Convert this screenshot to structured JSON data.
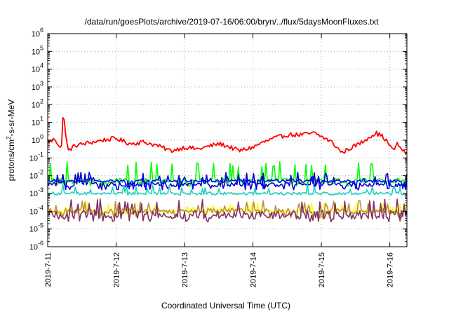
{
  "chart_data": {
    "type": "line",
    "title": "/data/run/goesPlots/archive/2019-07-16/06:00/bryn/../flux/5daysMoonFluxes.txt",
    "xlabel": "Coordinated Universal Time (UTC)",
    "ylabel": {
      "prefix": "protons/cm",
      "superscript": "2",
      "suffix": "-s-sr-MeV"
    },
    "yscale": "log",
    "ylim_exponent": [
      -6,
      6
    ],
    "y_ticks": [
      {
        "base": "10",
        "exp": "6"
      },
      {
        "base": "10",
        "exp": "5"
      },
      {
        "base": "10",
        "exp": "4"
      },
      {
        "base": "10",
        "exp": "3"
      },
      {
        "base": "10",
        "exp": "2"
      },
      {
        "base": "10",
        "exp": "1"
      },
      {
        "base": "10",
        "exp": "0"
      },
      {
        "base": "10",
        "exp": "-1"
      },
      {
        "base": "10",
        "exp": "-2"
      },
      {
        "base": "10",
        "exp": "-3"
      },
      {
        "base": "10",
        "exp": "-4"
      },
      {
        "base": "10",
        "exp": "-5"
      },
      {
        "base": "10",
        "exp": "-6"
      }
    ],
    "x_ticks": [
      "2019-7-11",
      "2019-7-12",
      "2019-7-13",
      "2019-7-14",
      "2019-7-15",
      "2019-7-16"
    ],
    "xlim": [
      "2019-07-11T00:00",
      "2019-07-16T06:00"
    ],
    "grid": true,
    "series": [
      {
        "color": "#ff0000",
        "baseline_exp": -0.1,
        "segments": [
          [
            0.0,
            0.0
          ],
          [
            0.05,
            -0.1
          ],
          [
            0.1,
            0.1
          ],
          [
            0.2,
            -0.5
          ],
          [
            0.23,
            1.8
          ],
          [
            0.27,
            0.0
          ],
          [
            0.3,
            -0.6
          ],
          [
            0.4,
            -0.3
          ],
          [
            0.6,
            -0.15
          ],
          [
            0.8,
            0.0
          ],
          [
            1.0,
            0.1
          ],
          [
            1.2,
            -0.2
          ],
          [
            1.4,
            -0.1
          ],
          [
            1.6,
            -0.3
          ],
          [
            1.8,
            -0.6
          ],
          [
            2.0,
            -0.4
          ],
          [
            2.2,
            -0.5
          ],
          [
            2.5,
            -0.2
          ],
          [
            2.6,
            -0.3
          ],
          [
            2.8,
            -0.6
          ],
          [
            3.0,
            -0.4
          ],
          [
            3.1,
            -0.2
          ],
          [
            3.3,
            0.1
          ],
          [
            3.5,
            0.3
          ],
          [
            3.7,
            0.3
          ],
          [
            3.9,
            0.4
          ],
          [
            4.0,
            0.2
          ],
          [
            4.15,
            -0.1
          ],
          [
            4.3,
            -0.7
          ],
          [
            4.4,
            -0.5
          ],
          [
            4.6,
            -0.1
          ],
          [
            4.7,
            0.2
          ],
          [
            4.8,
            0.4
          ],
          [
            4.9,
            0.2
          ],
          [
            5.0,
            -0.3
          ],
          [
            5.05,
            -0.6
          ],
          [
            5.1,
            -0.2
          ],
          [
            5.25,
            -0.8
          ]
        ],
        "noise": 0.25
      },
      {
        "color": "#00ff00",
        "baseline_exp": -2.3,
        "spike_to": -1.2,
        "dip_to": -2.6,
        "noise": 0.15
      },
      {
        "color": "#0000ff",
        "baseline_exp": -2.3,
        "spike_to": -2.0,
        "dip_to": -2.8,
        "noise": 0.08
      },
      {
        "color": "#0000cc",
        "baseline_exp": -2.5,
        "spike_to": -1.8,
        "dip_to": -2.8,
        "noise": 0.12
      },
      {
        "color": "#20d0c0",
        "baseline_exp": -3.0,
        "spike_to": -2.5,
        "dip_to": -3.1,
        "noise": 0.08
      },
      {
        "color": "#ffff00",
        "baseline_exp": -4.0,
        "spike_to": -3.5,
        "dip_to": -4.2,
        "noise": 0.08
      },
      {
        "color": "#c09030",
        "baseline_exp": -4.0,
        "spike_to": -3.4,
        "dip_to": -4.4,
        "noise": 0.15
      },
      {
        "color": "#803060",
        "baseline_exp": -4.2,
        "spike_to": -3.3,
        "dip_to": -4.6,
        "noise": 0.25
      }
    ]
  }
}
